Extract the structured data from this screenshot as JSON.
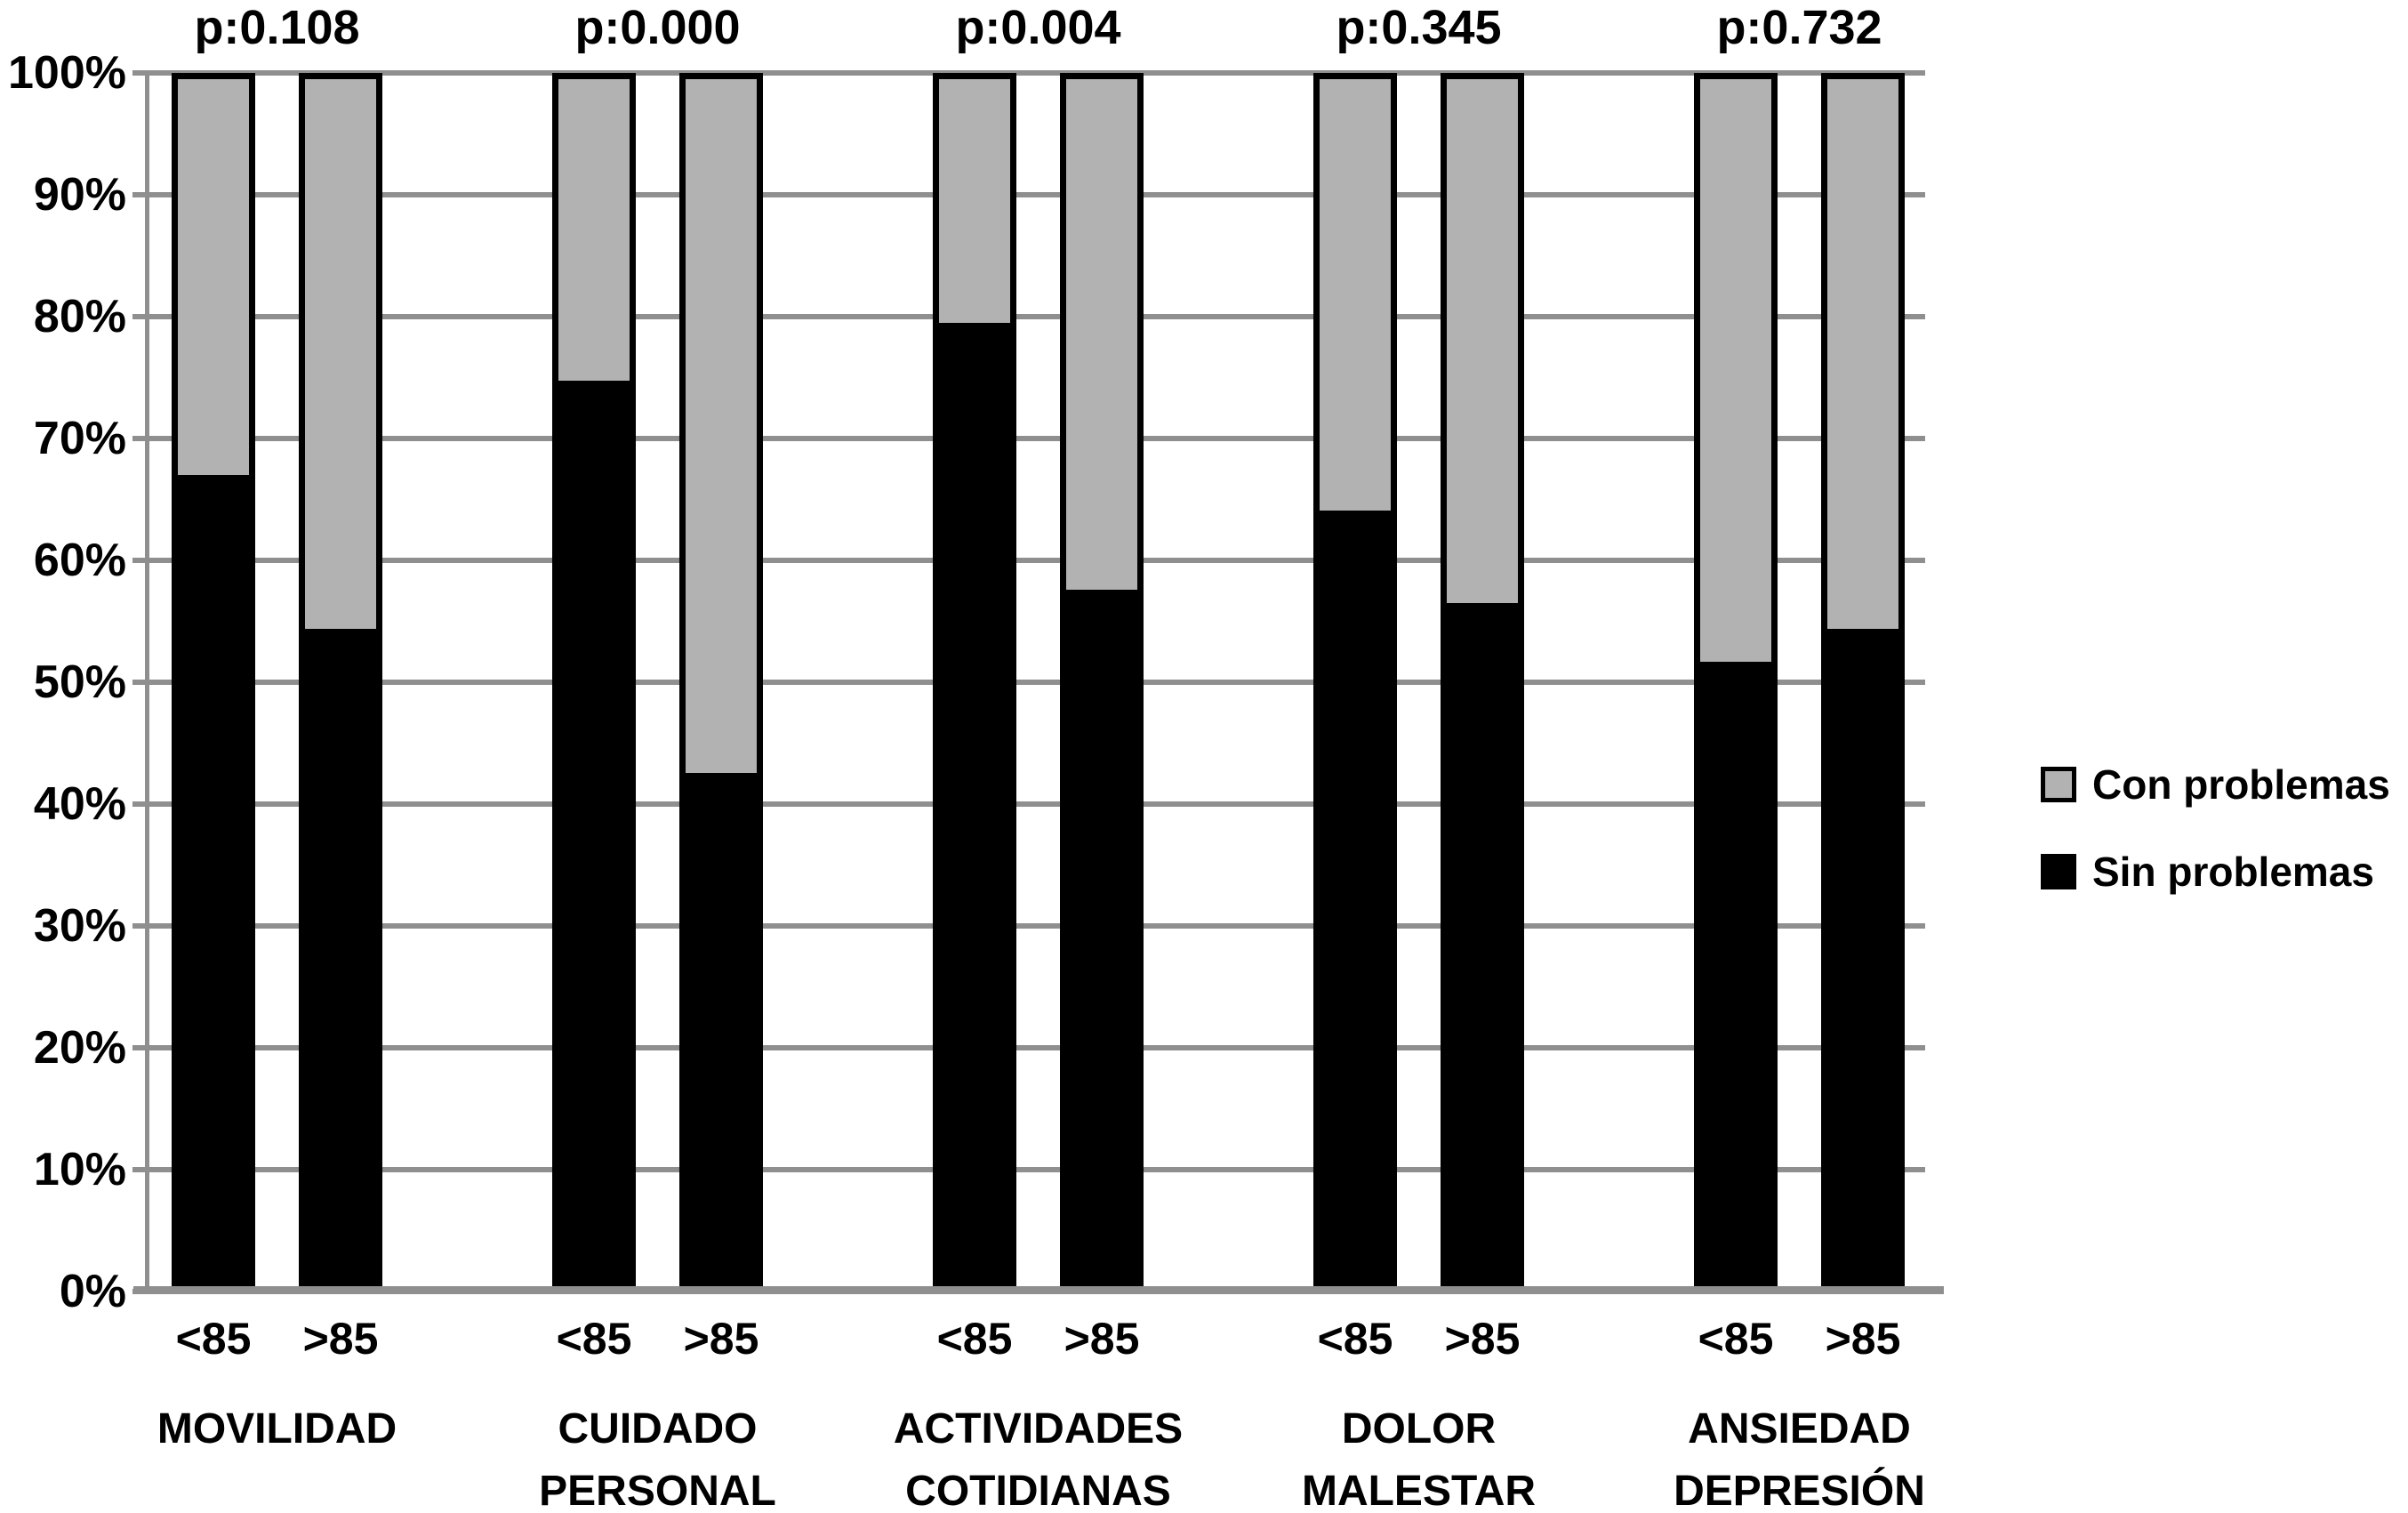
{
  "chart_data": {
    "type": "bar",
    "stacked": true,
    "unit": "%",
    "categories": [
      "MOVILIDAD",
      "CUIDADO PERSONAL",
      "ACTIVIDADES COTIDIANAS",
      "DOLOR MALESTAR",
      "ANSIEDAD DEPRESIÓN"
    ],
    "subcategories": [
      "<85",
      ">85"
    ],
    "p_values": [
      "p:0.108",
      "p:0.000",
      "p:0.004",
      "p:0.345",
      "p:0.732"
    ],
    "series": [
      {
        "name": "Con problemas",
        "color": "#b2b2b2",
        "values": [
          [
            32.8,
            45.6
          ],
          [
            25.0,
            57.5
          ],
          [
            20.2,
            42.3
          ],
          [
            35.8,
            43.4
          ],
          [
            48.3,
            45.6
          ]
        ]
      },
      {
        "name": "Sin problemas",
        "color": "#000000",
        "values": [
          [
            67.2,
            54.4
          ],
          [
            75.0,
            42.5
          ],
          [
            79.8,
            57.7
          ],
          [
            64.2,
            56.6
          ],
          [
            51.7,
            54.4
          ]
        ]
      }
    ],
    "ylim": [
      0,
      100
    ],
    "y_tick_labels": [
      "100%",
      "90%",
      "80%",
      "70%",
      "60%",
      "50%",
      "40%",
      "30%",
      "20%",
      "10%",
      "0%"
    ],
    "grid": true,
    "legend_position": "right",
    "legend_items": [
      "Con problemas",
      "Sin problemas"
    ]
  },
  "colors": {
    "con_problemas": "#b2b2b2",
    "sin_problemas": "#000000",
    "gridline": "#8f8f8f",
    "background": "#ffffff"
  }
}
